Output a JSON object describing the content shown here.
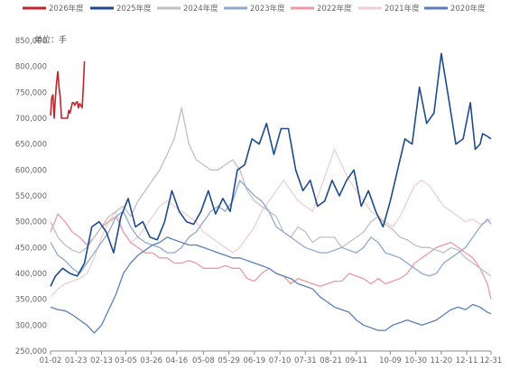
{
  "chart_data": {
    "type": "line",
    "unit_label": "单位：手",
    "ylim": [
      250000,
      850000
    ],
    "y_ticks": [
      250000,
      300000,
      350000,
      400000,
      450000,
      500000,
      550000,
      600000,
      650000,
      700000,
      750000,
      800000,
      850000
    ],
    "y_tick_labels": [
      "250,000",
      "300,000",
      "350,000",
      "400,000",
      "450,000",
      "500,000",
      "550,000",
      "600,000",
      "650,000",
      "700,000",
      "750,000",
      "800,000",
      "850,000"
    ],
    "x_tick_labels": [
      "01-02",
      "01-23",
      "02-13",
      "03-05",
      "03-26",
      "04-16",
      "05-08",
      "05-29",
      "06-19",
      "07-10",
      "07-31",
      "08-21",
      "09-11",
      "10-09",
      "10-30",
      "11-20",
      "12-11",
      "12-31"
    ],
    "x_tick_days": [
      2,
      23,
      44,
      64,
      85,
      106,
      128,
      149,
      170,
      191,
      212,
      233,
      254,
      282,
      303,
      324,
      345,
      365
    ],
    "grid": false,
    "legend_position": "top",
    "series": [
      {
        "name": "2026年度",
        "color": "#c0232b",
        "width": 1.6,
        "x": [
          2,
          3,
          4,
          5,
          6,
          7,
          8,
          9,
          10,
          11,
          12,
          13,
          14,
          15,
          16,
          17,
          18,
          19,
          20,
          21,
          22,
          23,
          24,
          25,
          26,
          27,
          28,
          29,
          30
        ],
        "values": [
          705000,
          740000,
          745000,
          700000,
          740000,
          770000,
          790000,
          760000,
          740000,
          700000,
          700000,
          700000,
          700000,
          700000,
          700000,
          715000,
          710000,
          720000,
          730000,
          730000,
          725000,
          730000,
          732000,
          720000,
          728000,
          725000,
          720000,
          760000,
          810000
        ]
      },
      {
        "name": "2025年度",
        "color": "#1e4a8f",
        "width": 1.6,
        "x": [
          2,
          6,
          12,
          18,
          24,
          30,
          36,
          42,
          48,
          54,
          60,
          66,
          72,
          78,
          84,
          90,
          96,
          102,
          108,
          114,
          120,
          126,
          132,
          138,
          144,
          150,
          156,
          162,
          168,
          174,
          180,
          186,
          192,
          198,
          204,
          210,
          216,
          222,
          228,
          234,
          240,
          246,
          252,
          258,
          264,
          270,
          276,
          282,
          288,
          294,
          300,
          306,
          312,
          318,
          324,
          330,
          336,
          342,
          348,
          352,
          356,
          358,
          362,
          365
        ],
        "values": [
          375000,
          395000,
          410000,
          400000,
          395000,
          420000,
          490000,
          500000,
          480000,
          440000,
          510000,
          545000,
          490000,
          500000,
          470000,
          465000,
          500000,
          560000,
          520000,
          500000,
          495000,
          520000,
          560000,
          515000,
          545000,
          520000,
          600000,
          610000,
          660000,
          650000,
          690000,
          630000,
          680000,
          680000,
          600000,
          560000,
          580000,
          530000,
          540000,
          580000,
          550000,
          580000,
          600000,
          530000,
          560000,
          520000,
          490000,
          540000,
          600000,
          660000,
          650000,
          760000,
          690000,
          710000,
          825000,
          740000,
          650000,
          660000,
          730000,
          640000,
          650000,
          670000,
          665000,
          660000
        ]
      },
      {
        "name": "2024年度",
        "color": "#c0c0c0",
        "width": 1.3,
        "x": [
          2,
          8,
          14,
          20,
          26,
          32,
          38,
          44,
          50,
          56,
          62,
          68,
          74,
          80,
          86,
          92,
          98,
          104,
          110,
          116,
          122,
          128,
          134,
          140,
          146,
          152,
          158,
          164,
          170,
          176,
          182,
          188,
          194,
          200,
          206,
          212,
          218,
          224,
          230,
          236,
          242,
          248,
          254,
          260,
          266,
          272,
          278,
          284,
          290,
          296,
          302,
          308,
          314,
          320,
          326,
          332,
          338,
          344,
          350,
          356,
          362,
          365
        ],
        "values": [
          500000,
          470000,
          455000,
          445000,
          440000,
          450000,
          470000,
          490000,
          510000,
          520000,
          530000,
          510000,
          540000,
          560000,
          580000,
          600000,
          630000,
          660000,
          720000,
          650000,
          620000,
          610000,
          600000,
          600000,
          610000,
          620000,
          600000,
          560000,
          540000,
          530000,
          520000,
          510000,
          480000,
          470000,
          490000,
          480000,
          460000,
          470000,
          470000,
          470000,
          450000,
          460000,
          470000,
          480000,
          500000,
          510000,
          495000,
          485000,
          470000,
          465000,
          455000,
          450000,
          450000,
          445000,
          440000,
          450000,
          445000,
          430000,
          420000,
          410000,
          400000,
          395000
        ]
      },
      {
        "name": "2023年度",
        "color": "#8fa8cf",
        "width": 1.3,
        "x": [
          2,
          8,
          14,
          20,
          26,
          32,
          38,
          44,
          50,
          56,
          62,
          68,
          74,
          80,
          86,
          92,
          98,
          104,
          110,
          116,
          122,
          128,
          134,
          140,
          146,
          152,
          158,
          164,
          170,
          176,
          182,
          188,
          194,
          200,
          206,
          212,
          218,
          224,
          230,
          236,
          242,
          248,
          254,
          260,
          266,
          272,
          278,
          284,
          290,
          296,
          302,
          308,
          314,
          320,
          326,
          332,
          338,
          344,
          350,
          356,
          362,
          365
        ],
        "values": [
          460000,
          435000,
          425000,
          410000,
          400000,
          420000,
          440000,
          460000,
          480000,
          510000,
          520000,
          490000,
          470000,
          460000,
          455000,
          450000,
          440000,
          440000,
          450000,
          470000,
          480000,
          500000,
          520000,
          530000,
          520000,
          540000,
          580000,
          565000,
          550000,
          540000,
          520000,
          490000,
          480000,
          470000,
          460000,
          450000,
          445000,
          440000,
          440000,
          445000,
          450000,
          445000,
          440000,
          450000,
          470000,
          460000,
          440000,
          435000,
          430000,
          420000,
          410000,
          400000,
          395000,
          400000,
          420000,
          430000,
          440000,
          450000,
          470000,
          490000,
          505000,
          495000
        ]
      },
      {
        "name": "2022年度",
        "color": "#eb9aa3",
        "width": 1.3,
        "x": [
          2,
          8,
          14,
          20,
          26,
          32,
          38,
          44,
          50,
          56,
          62,
          68,
          74,
          80,
          86,
          92,
          98,
          104,
          110,
          116,
          122,
          128,
          134,
          140,
          146,
          152,
          158,
          164,
          170,
          176,
          182,
          188,
          194,
          200,
          206,
          212,
          218,
          224,
          230,
          236,
          242,
          248,
          254,
          260,
          266,
          272,
          278,
          284,
          290,
          296,
          302,
          308,
          314,
          320,
          326,
          332,
          338,
          344,
          350,
          356,
          362,
          365
        ],
        "values": [
          480000,
          515000,
          500000,
          480000,
          470000,
          455000,
          470000,
          490000,
          500000,
          510000,
          480000,
          460000,
          450000,
          440000,
          440000,
          430000,
          430000,
          420000,
          420000,
          425000,
          420000,
          410000,
          410000,
          410000,
          415000,
          410000,
          410000,
          390000,
          385000,
          400000,
          410000,
          400000,
          395000,
          380000,
          390000,
          385000,
          380000,
          375000,
          380000,
          385000,
          385000,
          400000,
          395000,
          390000,
          380000,
          390000,
          380000,
          385000,
          390000,
          400000,
          420000,
          430000,
          440000,
          450000,
          455000,
          460000,
          450000,
          440000,
          430000,
          410000,
          380000,
          350000
        ]
      },
      {
        "name": "2021年度",
        "color": "#efcfd3",
        "width": 1.3,
        "x": [
          2,
          8,
          14,
          20,
          26,
          32,
          38,
          44,
          50,
          56,
          62,
          68,
          74,
          80,
          86,
          92,
          98,
          104,
          110,
          116,
          122,
          128,
          134,
          140,
          146,
          152,
          158,
          164,
          170,
          176,
          182,
          188,
          194,
          200,
          206,
          212,
          218,
          224,
          230,
          236,
          242,
          248,
          254,
          260,
          266,
          272,
          278,
          284,
          290,
          296,
          302,
          308,
          314,
          320,
          326,
          332,
          338,
          344,
          350,
          356,
          362,
          365
        ],
        "values": [
          355000,
          370000,
          380000,
          385000,
          390000,
          400000,
          430000,
          470000,
          500000,
          520000,
          480000,
          460000,
          470000,
          490000,
          510000,
          530000,
          540000,
          530000,
          520000,
          510000,
          500000,
          480000,
          470000,
          460000,
          450000,
          440000,
          450000,
          470000,
          490000,
          520000,
          540000,
          560000,
          580000,
          560000,
          540000,
          530000,
          520000,
          560000,
          600000,
          640000,
          610000,
          580000,
          560000,
          540000,
          520000,
          510000,
          500000,
          490000,
          510000,
          540000,
          570000,
          580000,
          570000,
          550000,
          530000,
          520000,
          510000,
          500000,
          505000,
          495000,
          500000,
          505000
        ]
      },
      {
        "name": "2020年度",
        "color": "#5b7fb5",
        "width": 1.3,
        "x": [
          2,
          8,
          14,
          20,
          26,
          32,
          38,
          44,
          50,
          56,
          62,
          68,
          74,
          80,
          86,
          92,
          98,
          104,
          110,
          116,
          122,
          128,
          134,
          140,
          146,
          152,
          158,
          164,
          170,
          176,
          182,
          188,
          194,
          200,
          206,
          212,
          218,
          224,
          230,
          236,
          242,
          248,
          254,
          260,
          266,
          272,
          278,
          284,
          290,
          296,
          302,
          308,
          314,
          320,
          326,
          332,
          338,
          344,
          350,
          356,
          362,
          365
        ],
        "values": [
          335000,
          330000,
          328000,
          320000,
          310000,
          300000,
          285000,
          300000,
          330000,
          360000,
          400000,
          420000,
          435000,
          445000,
          455000,
          460000,
          470000,
          465000,
          460000,
          455000,
          455000,
          450000,
          445000,
          440000,
          435000,
          430000,
          430000,
          425000,
          420000,
          415000,
          410000,
          400000,
          395000,
          390000,
          380000,
          375000,
          370000,
          355000,
          345000,
          335000,
          330000,
          325000,
          310000,
          300000,
          295000,
          290000,
          290000,
          300000,
          305000,
          310000,
          305000,
          300000,
          305000,
          310000,
          320000,
          330000,
          335000,
          330000,
          340000,
          335000,
          325000,
          322000
        ]
      }
    ]
  }
}
